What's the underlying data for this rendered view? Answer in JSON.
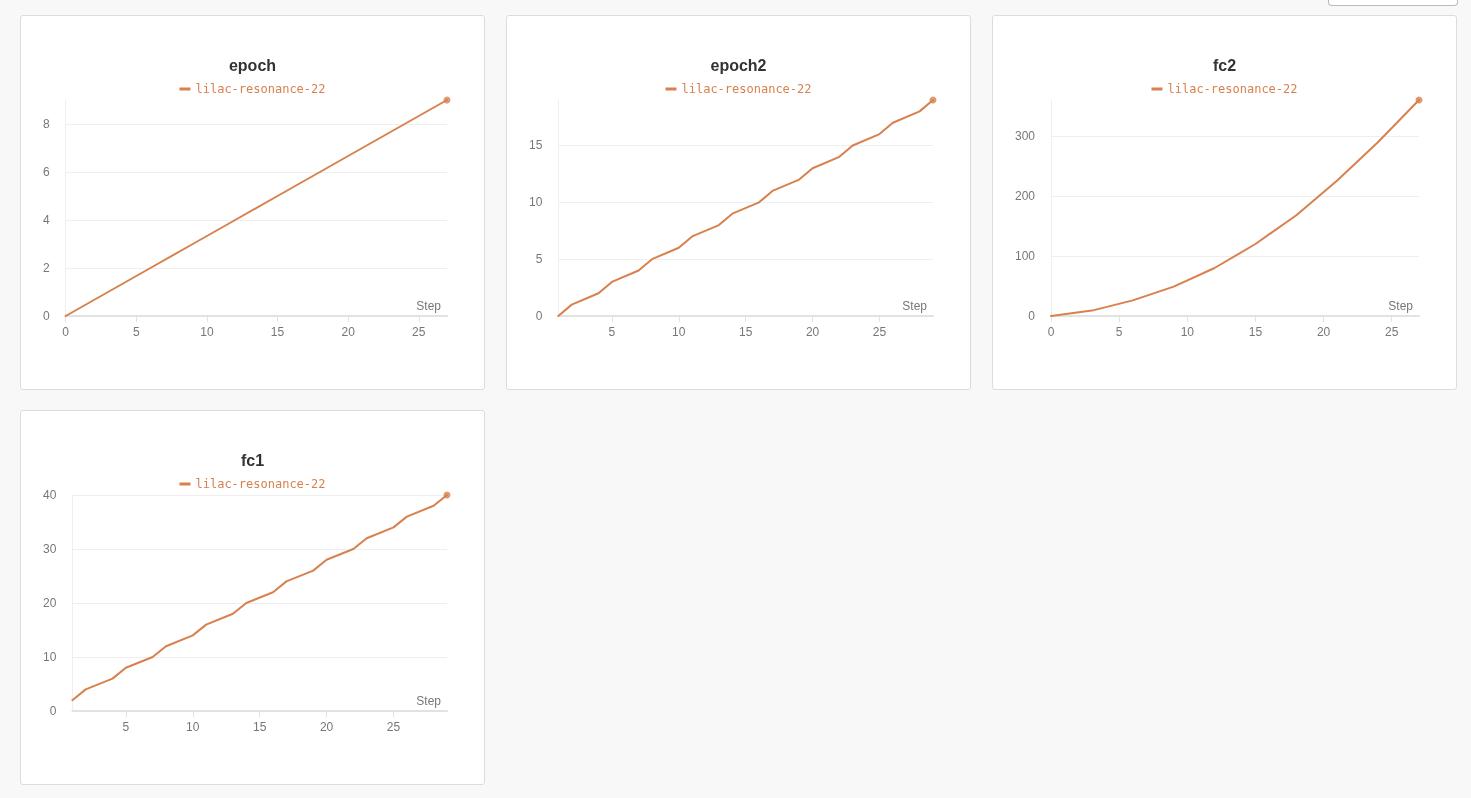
{
  "chart_data": [
    {
      "type": "line",
      "title": "epoch",
      "xlabel": "Step",
      "x": [
        0,
        3,
        6,
        9,
        12,
        15,
        18,
        21,
        24,
        27
      ],
      "series": [
        {
          "name": "lilac-resonance-22",
          "color": "#d8804e",
          "values": [
            0,
            1,
            2,
            3,
            4,
            5,
            6,
            7,
            8,
            9
          ]
        },
        {
          "type": "scatter",
          "color": "#d8804e",
          "values": [
            null,
            null,
            null,
            null,
            null,
            null,
            null,
            null,
            null,
            9
          ]
        }
      ],
      "xlim": [
        0,
        27
      ],
      "xticks": [
        0,
        5,
        10,
        15,
        20,
        25
      ],
      "ylim": [
        0,
        9
      ],
      "yticks": [
        0,
        2,
        4,
        6,
        8
      ],
      "grid": "y",
      "legend": "top",
      "marker": "none",
      "line_style": "solid"
    },
    {
      "type": "line",
      "title": "epoch2",
      "xlabel": "Step",
      "x": [
        1,
        2,
        4,
        5,
        7,
        8,
        10,
        11,
        13,
        14,
        16,
        17,
        19,
        20,
        22,
        23,
        25,
        26,
        28,
        29
      ],
      "series": [
        {
          "name": "lilac-resonance-22",
          "color": "#d8804e",
          "values": [
            0,
            1,
            2,
            3,
            4,
            5,
            6,
            7,
            8,
            9,
            10,
            11,
            12,
            13,
            14,
            15,
            16,
            17,
            18,
            19
          ]
        },
        {
          "type": "scatter",
          "color": "#d8804e",
          "values": [
            null,
            null,
            null,
            null,
            null,
            null,
            null,
            null,
            null,
            null,
            null,
            null,
            null,
            null,
            null,
            null,
            null,
            null,
            null,
            19
          ]
        }
      ],
      "xlim": [
        1,
        29
      ],
      "xticks": [
        5,
        10,
        15,
        20,
        25
      ],
      "ylim": [
        0,
        19
      ],
      "yticks": [
        0,
        5,
        10,
        15
      ],
      "grid": "y",
      "legend": "top",
      "marker": "none",
      "line_style": "solid"
    },
    {
      "type": "line",
      "title": "fc2",
      "xlabel": "Step",
      "x": [
        0,
        3,
        6,
        9,
        12,
        15,
        18,
        21,
        24,
        27
      ],
      "series": [
        {
          "name": "lilac-resonance-22",
          "color": "#d8804e",
          "values": [
            0,
            9,
            26,
            49,
            80,
            120,
            168,
            226,
            290,
            360
          ]
        },
        {
          "type": "scatter",
          "color": "#d8804e",
          "values": [
            null,
            null,
            null,
            null,
            null,
            null,
            null,
            null,
            null,
            360
          ]
        }
      ],
      "xlim": [
        0,
        27
      ],
      "xticks": [
        0,
        5,
        10,
        15,
        20,
        25
      ],
      "ylim": [
        0,
        360
      ],
      "yticks": [
        0,
        100,
        200,
        300
      ],
      "grid": "y",
      "legend": "top",
      "marker": "none",
      "line_style": "solid"
    },
    {
      "type": "line",
      "title": "fc1",
      "xlabel": "Step",
      "x": [
        1,
        2,
        4,
        5,
        7,
        8,
        10,
        11,
        13,
        14,
        16,
        17,
        19,
        20,
        22,
        23,
        25,
        26,
        28,
        29
      ],
      "series": [
        {
          "name": "lilac-resonance-22",
          "color": "#d8804e",
          "values": [
            2,
            4,
            6,
            8,
            10,
            12,
            14,
            16,
            18,
            20,
            22,
            24,
            26,
            28,
            30,
            32,
            34,
            36,
            38,
            40
          ]
        },
        {
          "type": "scatter",
          "color": "#d8804e",
          "values": [
            null,
            null,
            null,
            null,
            null,
            null,
            null,
            null,
            null,
            null,
            null,
            null,
            null,
            null,
            null,
            null,
            null,
            null,
            null,
            40
          ]
        }
      ],
      "xlim": [
        1,
        29
      ],
      "xticks": [
        5,
        10,
        15,
        20,
        25
      ],
      "ylim": [
        0,
        40
      ],
      "yticks": [
        0,
        10,
        20,
        30,
        40
      ],
      "grid": "y",
      "legend": "top",
      "marker": "none",
      "line_style": "solid"
    }
  ]
}
